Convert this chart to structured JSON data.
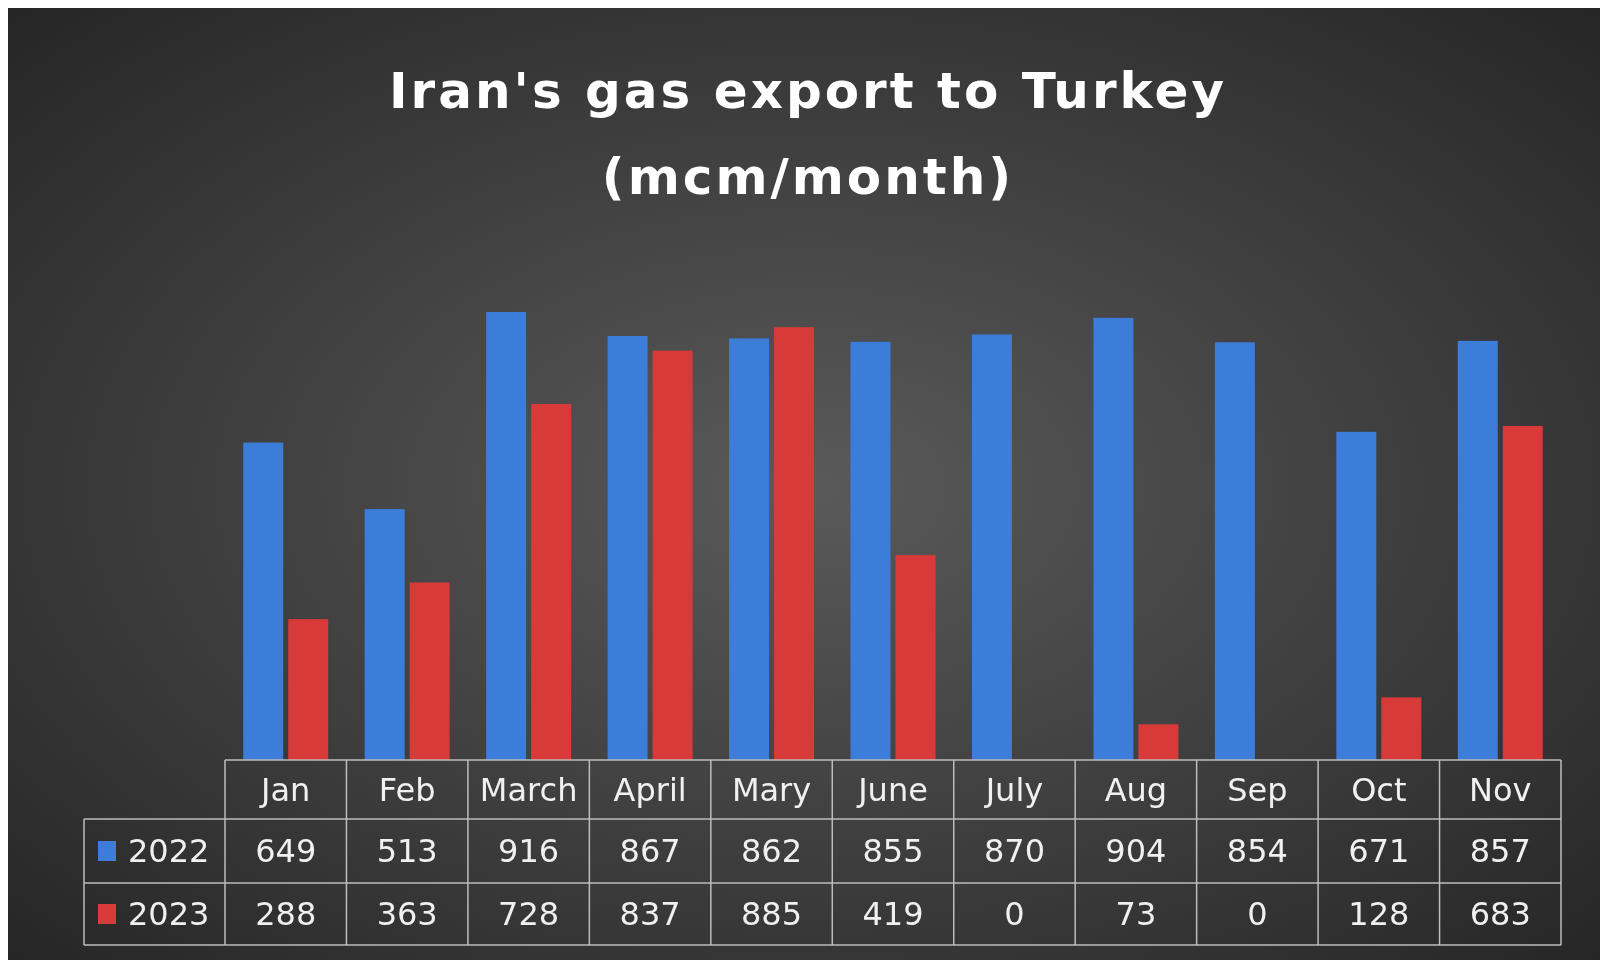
{
  "chart_data": {
    "type": "bar",
    "title": "Iran's gas export to Turkey\n(mcm/month)",
    "categories": [
      "Jan",
      "Feb",
      "March",
      "April",
      "Mary",
      "June",
      "July",
      "Aug",
      "Sep",
      "Oct",
      "Nov"
    ],
    "series": [
      {
        "name": "2022",
        "color": "#3b7dd8",
        "values": [
          649,
          513,
          916,
          867,
          862,
          855,
          870,
          904,
          854,
          671,
          857
        ]
      },
      {
        "name": "2023",
        "color": "#d83a3a",
        "values": [
          288,
          363,
          728,
          837,
          885,
          419,
          0,
          73,
          0,
          128,
          683
        ]
      }
    ],
    "data_labels": true,
    "legend": "bottom"
  }
}
